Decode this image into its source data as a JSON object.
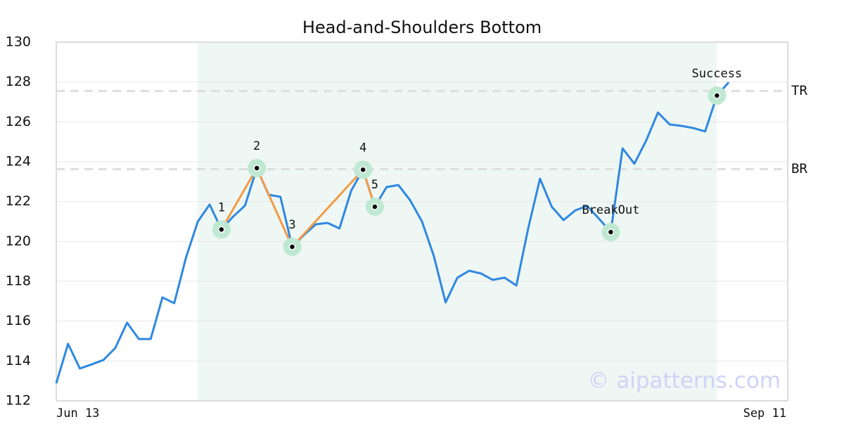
{
  "chart_data": {
    "type": "line",
    "title": "Head-and-Shoulders Bottom",
    "x": [
      0,
      1,
      2,
      3,
      4,
      5,
      6,
      7,
      8,
      9,
      10,
      11,
      12,
      13,
      14,
      15,
      16,
      17,
      18,
      19,
      20,
      21,
      22,
      23,
      24,
      25,
      26,
      27,
      28,
      29,
      30,
      31,
      32,
      33,
      34,
      35,
      36,
      37,
      38,
      39,
      40,
      41,
      42,
      43,
      44,
      45,
      46,
      47,
      48,
      49,
      50,
      51,
      52,
      53,
      54,
      55,
      56,
      57
    ],
    "series": [
      {
        "color": "#2f88e0",
        "values": [
          112.88,
          114.86,
          113.62,
          113.83,
          114.05,
          114.65,
          115.92,
          115.1,
          115.1,
          117.19,
          116.9,
          119.2,
          121.0,
          121.85,
          120.6,
          121.25,
          121.8,
          123.68,
          122.34,
          122.24,
          119.73,
          120.33,
          120.86,
          120.93,
          120.65,
          122.55,
          123.6,
          121.74,
          122.73,
          122.83,
          122.06,
          121.0,
          119.27,
          116.94,
          118.18,
          118.53,
          118.39,
          118.07,
          118.18,
          117.79,
          120.65,
          123.15,
          121.74,
          121.07,
          121.56,
          121.78,
          121.14,
          120.47,
          124.67,
          123.9,
          125.06,
          126.47,
          125.87,
          125.8,
          125.69,
          125.52,
          127.32,
          127.99
        ]
      }
    ],
    "xlim": [
      0,
      62
    ],
    "xticks": [
      {
        "value": 0,
        "label": "Jun 13"
      },
      {
        "value": 62,
        "label": "Sep 11"
      }
    ],
    "ylim": [
      112,
      130
    ],
    "yticks": [
      112,
      114,
      116,
      118,
      120,
      122,
      124,
      126,
      128,
      130
    ],
    "grid": true,
    "highlight_range": [
      12,
      56
    ],
    "pattern_color": "#f19a45",
    "pattern_points": [
      {
        "index": 14,
        "label": "1"
      },
      {
        "index": 17,
        "label": "2"
      },
      {
        "index": 20,
        "label": "3"
      },
      {
        "index": 26,
        "label": "4"
      },
      {
        "index": 27,
        "label": "5"
      }
    ],
    "signal_points": [
      {
        "index": 47,
        "label": "BreakOut"
      },
      {
        "index": 56,
        "label": "Success"
      }
    ],
    "levels": [
      {
        "label": "TR",
        "value": 127.55
      },
      {
        "label": "BR",
        "value": 123.63
      }
    ],
    "watermark": "© aipatterns.com"
  }
}
